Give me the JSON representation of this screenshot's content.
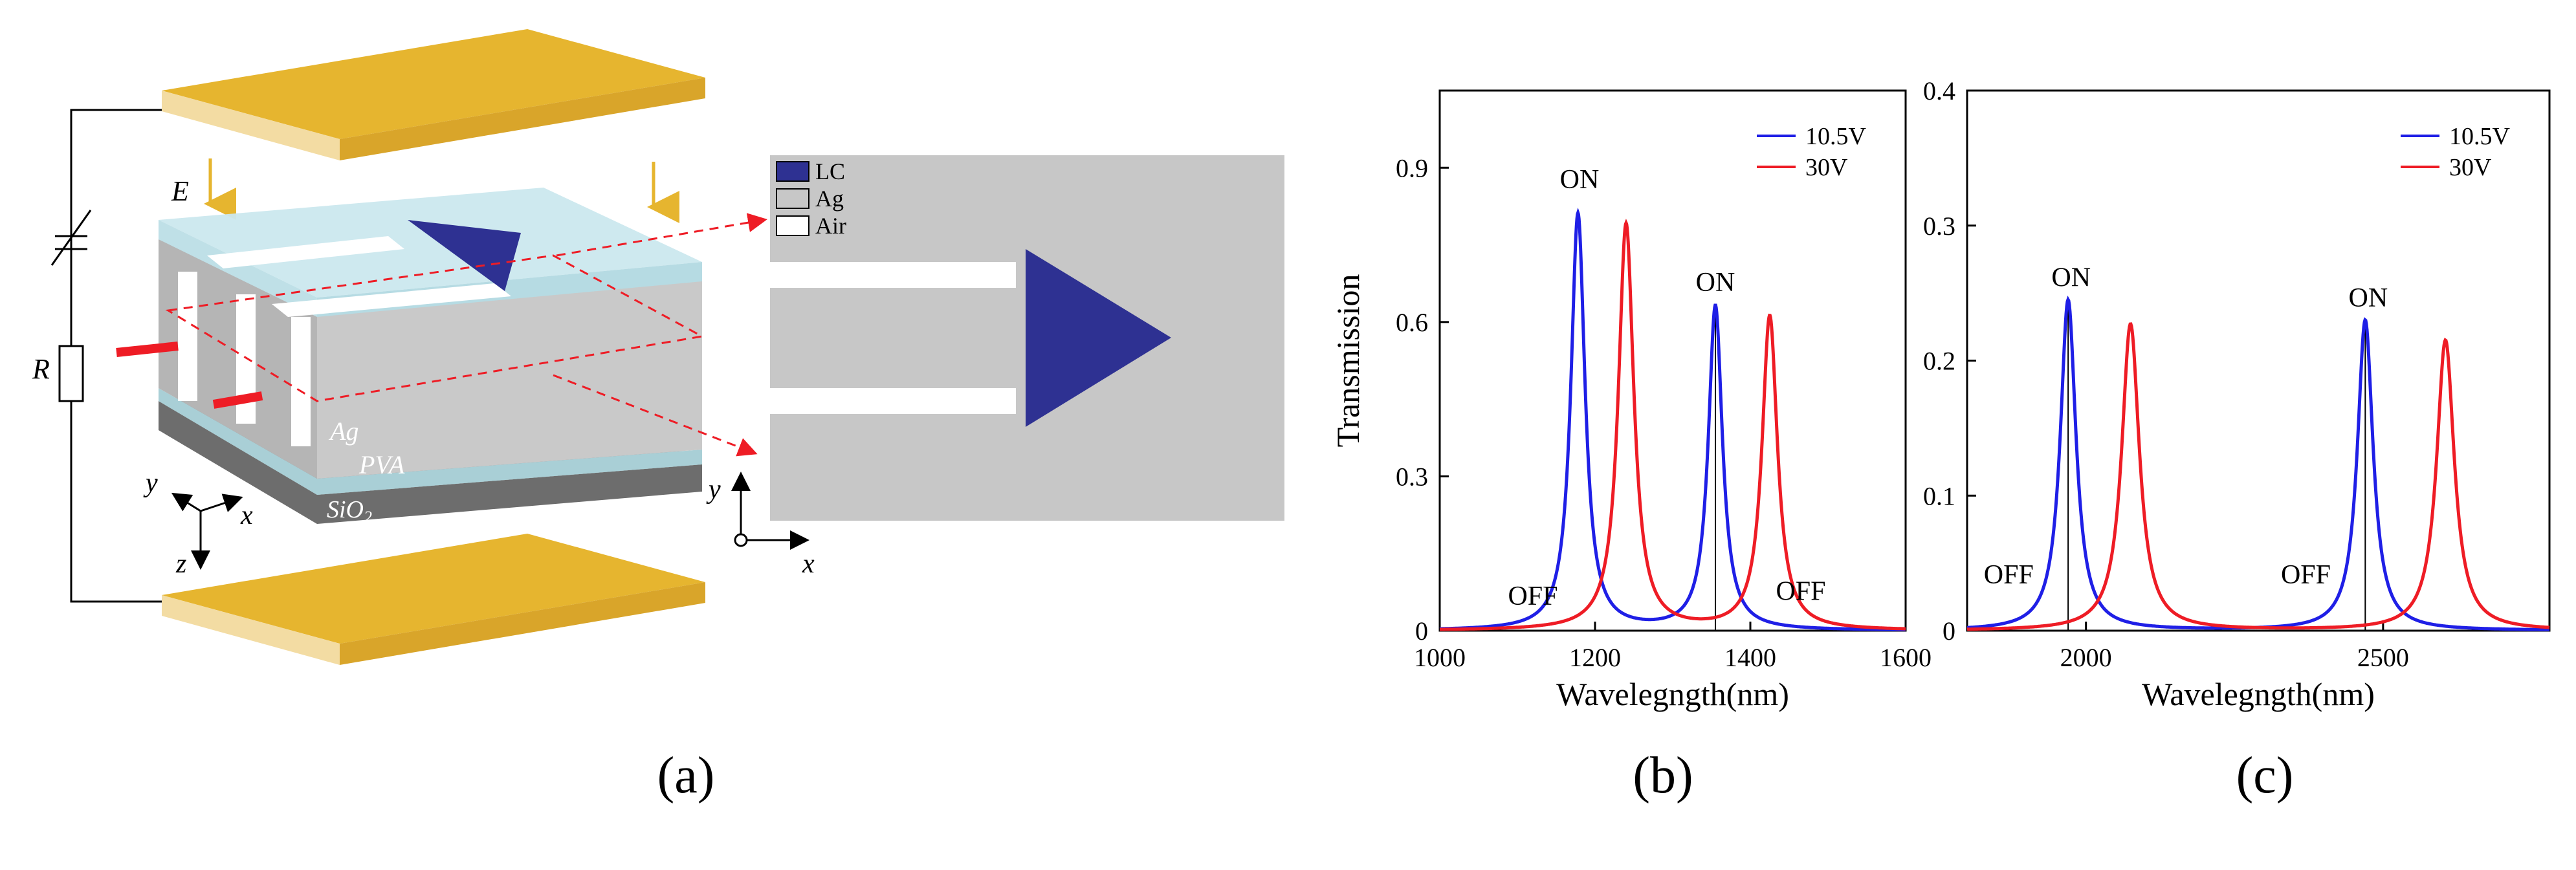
{
  "colors": {
    "blue": "#1f1fe6",
    "red": "#ee1c25",
    "gold": "#e6b52f",
    "lc": "#2e3192",
    "ag": "#c7c7c7",
    "glass": "#cbe8ee",
    "black": "#000000"
  },
  "panel_a": {
    "label": "(a)",
    "schematic": {
      "e_label": "E",
      "r_label": "R",
      "ag_label": "Ag",
      "pva_label": "PVA",
      "sio2_label": "SiO",
      "sio2_sub": "2",
      "axis_y": "y",
      "axis_x": "x",
      "axis_z": "z"
    },
    "cross_section": {
      "legend": [
        "LC",
        "Ag",
        "Air"
      ],
      "axis_y": "y",
      "axis_x": "x"
    }
  },
  "panel_b": {
    "label": "(b)"
  },
  "panel_c": {
    "label": "(c)"
  },
  "chart_data": [
    {
      "type": "line",
      "panel": "(b)",
      "xlabel": "Wavelegngth(nm)",
      "ylabel": "Transmission",
      "xlim": [
        1000,
        1600
      ],
      "ylim": [
        0,
        1.05
      ],
      "xticks": [
        1000,
        1200,
        1400,
        1600
      ],
      "yticks": [
        0,
        0.3,
        0.6,
        0.9
      ],
      "ytick_labels": [
        "0",
        "0.3",
        "0.6",
        "0.9"
      ],
      "legend_position": "top-right",
      "annotations": [
        {
          "text": "ON",
          "x": 1180,
          "y": 0.86
        },
        {
          "text": "ON",
          "x": 1355,
          "y": 0.66
        },
        {
          "text": "OFF",
          "x": 1120,
          "y": 0.05
        },
        {
          "text": "OFF",
          "x": 1465,
          "y": 0.06
        }
      ],
      "marker_line_x": 1355,
      "series": [
        {
          "name": "10.5V",
          "color": "#1f1fe6",
          "peaks": [
            {
              "x": 1178,
              "y": 0.81
            },
            {
              "x": 1355,
              "y": 0.63
            }
          ],
          "width": 11
        },
        {
          "name": "30V",
          "color": "#ee1c25",
          "peaks": [
            {
              "x": 1240,
              "y": 0.79
            },
            {
              "x": 1425,
              "y": 0.61
            }
          ],
          "width": 12
        }
      ]
    },
    {
      "type": "line",
      "panel": "(c)",
      "xlabel": "Wavelegngth(nm)",
      "ylabel": "",
      "xlim": [
        1800,
        2780
      ],
      "ylim": [
        0,
        0.4
      ],
      "xticks": [
        2000,
        2500
      ],
      "yticks": [
        0,
        0.1,
        0.2,
        0.3,
        0.4
      ],
      "ytick_labels": [
        "0",
        "0.1",
        "0.2",
        "0.3",
        "0.4"
      ],
      "legend_position": "top-right",
      "annotations": [
        {
          "text": "ON",
          "x": 1975,
          "y": 0.255
        },
        {
          "text": "ON",
          "x": 2475,
          "y": 0.24
        },
        {
          "text": "OFF",
          "x": 1870,
          "y": 0.035
        },
        {
          "text": "OFF",
          "x": 2370,
          "y": 0.035
        }
      ],
      "marker_line_x": 1970,
      "marker_line_x2": 2470,
      "series": [
        {
          "name": "10.5V",
          "color": "#1f1fe6",
          "peaks": [
            {
              "x": 1970,
              "y": 0.245
            },
            {
              "x": 2470,
              "y": 0.23
            }
          ],
          "width": 16
        },
        {
          "name": "30V",
          "color": "#ee1c25",
          "peaks": [
            {
              "x": 2075,
              "y": 0.227
            },
            {
              "x": 2605,
              "y": 0.215
            }
          ],
          "width": 18
        }
      ]
    }
  ]
}
